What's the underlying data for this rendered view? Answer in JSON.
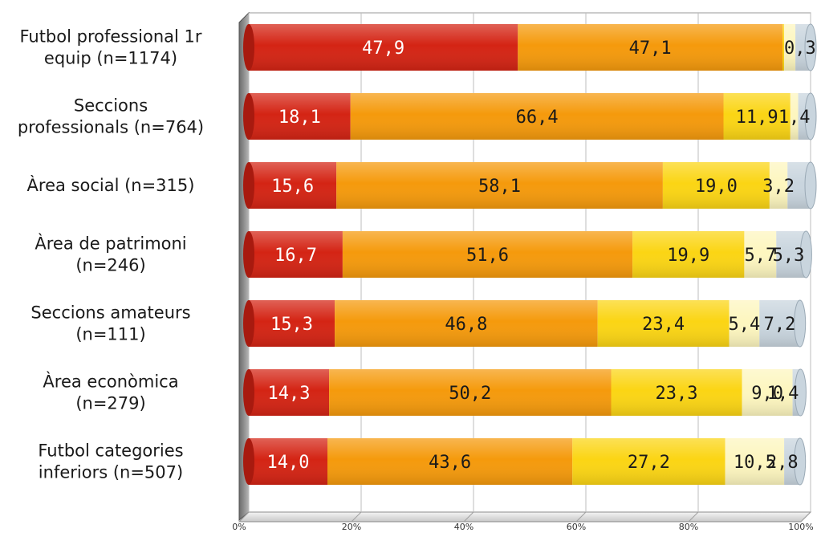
{
  "chart_data": {
    "type": "bar",
    "orientation": "horizontal",
    "stacked": true,
    "percent": true,
    "categories": [
      [
        "Futbol professional 1r",
        "equip (n=1174)"
      ],
      [
        "Seccions",
        "professionals (n=764)"
      ],
      [
        "Àrea social (n=315)"
      ],
      [
        "Àrea de patrimoni",
        "(n=246)"
      ],
      [
        "Seccions amateurs",
        "(n=111)"
      ],
      [
        "Àrea econòmica",
        "(n=279)"
      ],
      [
        "Futbol categories",
        "inferiors (n=507)"
      ]
    ],
    "series": [
      {
        "color": "#d42414",
        "label_color": "#ffffff",
        "values": [
          47.9,
          18.1,
          15.6,
          16.7,
          15.3,
          14.3,
          14.0
        ]
      },
      {
        "color": "#f59a0c",
        "label_color": "#1a1a1a",
        "values": [
          47.1,
          66.4,
          58.1,
          51.6,
          46.8,
          50.2,
          43.6
        ]
      },
      {
        "color": "#fbd514",
        "label_color": "#1a1a1a",
        "values": [
          0.3,
          11.9,
          19.0,
          19.9,
          23.4,
          23.3,
          27.2
        ]
      },
      {
        "color": "#fdf6bf",
        "label_color": "#1a1a1a",
        "values": [
          2.0,
          1.4,
          3.2,
          5.7,
          5.4,
          9.0,
          10.5
        ]
      },
      {
        "color": "#c9d5de",
        "label_color": "#1a1a1a",
        "values": [
          2.7,
          2.2,
          4.1,
          5.3,
          7.2,
          1.4,
          2.8
        ]
      }
    ],
    "data_labels": [
      [
        "47,9",
        "47,1",
        "0,3",
        "",
        ""
      ],
      [
        "18,1",
        "66,4",
        "11,9",
        "1,4",
        ""
      ],
      [
        "15,6",
        "58,1",
        "19,0",
        "3,2",
        ""
      ],
      [
        "16,7",
        "51,6",
        "19,9",
        "5,7",
        "5,3"
      ],
      [
        "15,3",
        "46,8",
        "23,4",
        "5,4",
        "7,2"
      ],
      [
        "14,3",
        "50,2",
        "23,3",
        "9,0",
        "1,4"
      ],
      [
        "14,0",
        "43,6",
        "27,2",
        "10,5",
        "2,8"
      ]
    ],
    "x_ticks": [
      "0%",
      "20%",
      "40%",
      "60%",
      "80%",
      "100%"
    ],
    "xlim": [
      0,
      100
    ],
    "grid": true,
    "legend": "none",
    "title": "",
    "xlabel": "",
    "ylabel": ""
  }
}
